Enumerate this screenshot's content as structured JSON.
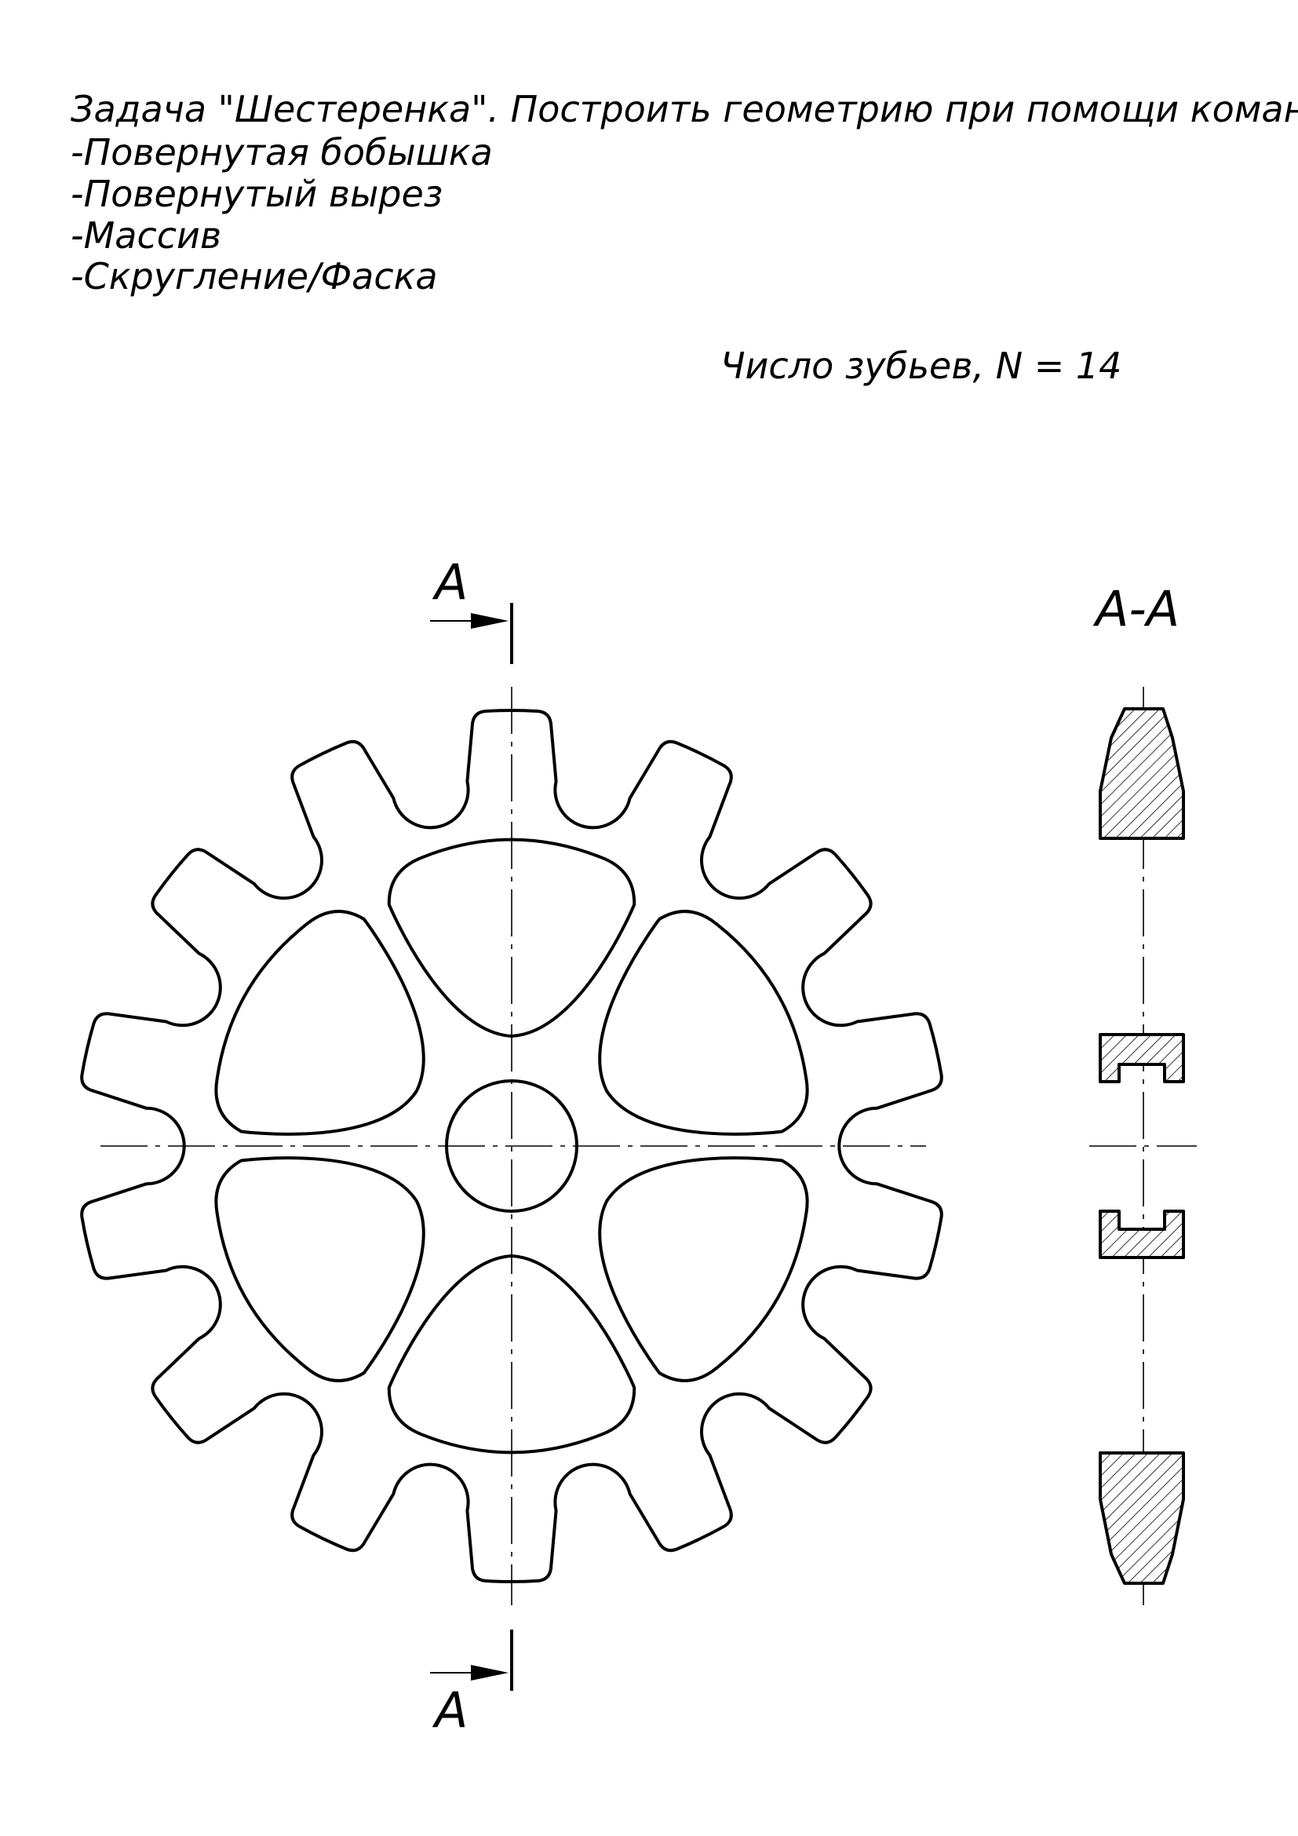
{
  "task": {
    "title": "Задача \"Шестеренка\". Построить геометрию при помощи команд:",
    "items": [
      "-Повернутая бобышка",
      "-Повернутый вырез",
      "-Массив",
      "-Скругление/Фаска"
    ]
  },
  "teeth_note": "Число зубьев, N = 14",
  "gear": {
    "teeth_count": 14,
    "window_count": 6
  },
  "section": {
    "marker_top": "A",
    "marker_bottom": "A",
    "title": "А-А"
  }
}
